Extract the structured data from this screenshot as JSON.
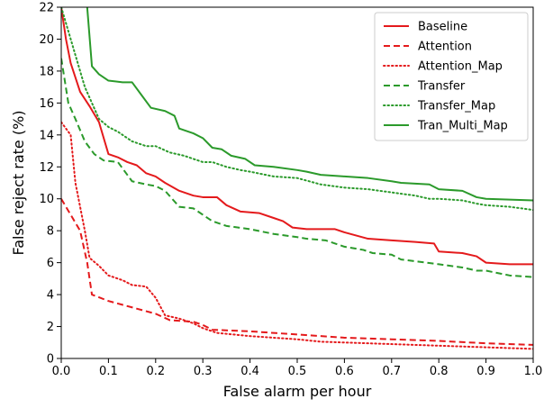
{
  "chart_data": {
    "type": "line",
    "xlabel": "False alarm per hour",
    "ylabel": "False reject rate (%)",
    "xlim": [
      0.0,
      1.0
    ],
    "ylim": [
      0,
      22
    ],
    "x_ticks": [
      "0.0",
      "0.1",
      "0.2",
      "0.3",
      "0.4",
      "0.5",
      "0.6",
      "0.7",
      "0.8",
      "0.9",
      "1.0"
    ],
    "y_ticks": [
      "0",
      "2",
      "4",
      "6",
      "8",
      "10",
      "12",
      "14",
      "16",
      "18",
      "20",
      "22"
    ],
    "grid": false,
    "legend_position": "top-right",
    "series": [
      {
        "name": "Baseline",
        "color": "#e41a1c",
        "dash": "solid",
        "points": [
          [
            0.0,
            22.0
          ],
          [
            0.01,
            20.0
          ],
          [
            0.02,
            18.5
          ],
          [
            0.04,
            16.7
          ],
          [
            0.06,
            15.8
          ],
          [
            0.08,
            14.8
          ],
          [
            0.1,
            12.8
          ],
          [
            0.12,
            12.6
          ],
          [
            0.14,
            12.3
          ],
          [
            0.16,
            12.1
          ],
          [
            0.18,
            11.6
          ],
          [
            0.2,
            11.4
          ],
          [
            0.22,
            11.0
          ],
          [
            0.25,
            10.5
          ],
          [
            0.28,
            10.2
          ],
          [
            0.3,
            10.1
          ],
          [
            0.33,
            10.1
          ],
          [
            0.35,
            9.6
          ],
          [
            0.38,
            9.2
          ],
          [
            0.42,
            9.1
          ],
          [
            0.45,
            8.8
          ],
          [
            0.47,
            8.6
          ],
          [
            0.49,
            8.2
          ],
          [
            0.52,
            8.1
          ],
          [
            0.58,
            8.1
          ],
          [
            0.6,
            7.9
          ],
          [
            0.65,
            7.5
          ],
          [
            0.7,
            7.4
          ],
          [
            0.75,
            7.3
          ],
          [
            0.79,
            7.2
          ],
          [
            0.8,
            6.7
          ],
          [
            0.85,
            6.6
          ],
          [
            0.88,
            6.4
          ],
          [
            0.9,
            6.0
          ],
          [
            0.95,
            5.9
          ],
          [
            1.0,
            5.9
          ]
        ]
      },
      {
        "name": "Attention",
        "color": "#e41a1c",
        "dash": "dashed",
        "points": [
          [
            0.0,
            10.0
          ],
          [
            0.02,
            9.0
          ],
          [
            0.04,
            8.0
          ],
          [
            0.055,
            6.0
          ],
          [
            0.065,
            4.0
          ],
          [
            0.1,
            3.6
          ],
          [
            0.15,
            3.2
          ],
          [
            0.2,
            2.8
          ],
          [
            0.23,
            2.4
          ],
          [
            0.28,
            2.3
          ],
          [
            0.3,
            2.1
          ],
          [
            0.32,
            1.8
          ],
          [
            0.4,
            1.7
          ],
          [
            0.5,
            1.5
          ],
          [
            0.55,
            1.4
          ],
          [
            0.6,
            1.3
          ],
          [
            0.7,
            1.2
          ],
          [
            0.8,
            1.1
          ],
          [
            0.9,
            0.95
          ],
          [
            1.0,
            0.85
          ]
        ]
      },
      {
        "name": "Attention_Map",
        "color": "#e41a1c",
        "dash": "dotted",
        "points": [
          [
            0.0,
            14.8
          ],
          [
            0.02,
            14.0
          ],
          [
            0.03,
            11.0
          ],
          [
            0.05,
            8.0
          ],
          [
            0.06,
            6.3
          ],
          [
            0.08,
            5.8
          ],
          [
            0.1,
            5.2
          ],
          [
            0.13,
            4.9
          ],
          [
            0.15,
            4.6
          ],
          [
            0.18,
            4.5
          ],
          [
            0.2,
            3.8
          ],
          [
            0.22,
            2.7
          ],
          [
            0.25,
            2.5
          ],
          [
            0.28,
            2.2
          ],
          [
            0.3,
            1.9
          ],
          [
            0.33,
            1.6
          ],
          [
            0.4,
            1.4
          ],
          [
            0.5,
            1.2
          ],
          [
            0.55,
            1.05
          ],
          [
            0.6,
            1.0
          ],
          [
            0.7,
            0.9
          ],
          [
            0.8,
            0.8
          ],
          [
            0.9,
            0.7
          ],
          [
            1.0,
            0.6
          ]
        ]
      },
      {
        "name": "Transfer",
        "color": "#2b9a2b",
        "dash": "dashed",
        "points": [
          [
            0.0,
            18.8
          ],
          [
            0.015,
            16.0
          ],
          [
            0.03,
            15.0
          ],
          [
            0.05,
            13.6
          ],
          [
            0.07,
            12.8
          ],
          [
            0.09,
            12.4
          ],
          [
            0.12,
            12.3
          ],
          [
            0.15,
            11.1
          ],
          [
            0.18,
            10.9
          ],
          [
            0.2,
            10.8
          ],
          [
            0.22,
            10.5
          ],
          [
            0.25,
            9.5
          ],
          [
            0.28,
            9.4
          ],
          [
            0.3,
            9.0
          ],
          [
            0.32,
            8.6
          ],
          [
            0.35,
            8.3
          ],
          [
            0.4,
            8.1
          ],
          [
            0.45,
            7.8
          ],
          [
            0.5,
            7.6
          ],
          [
            0.52,
            7.5
          ],
          [
            0.56,
            7.4
          ],
          [
            0.6,
            7.0
          ],
          [
            0.64,
            6.8
          ],
          [
            0.66,
            6.6
          ],
          [
            0.7,
            6.5
          ],
          [
            0.72,
            6.2
          ],
          [
            0.8,
            5.9
          ],
          [
            0.85,
            5.7
          ],
          [
            0.88,
            5.5
          ],
          [
            0.9,
            5.5
          ],
          [
            0.95,
            5.2
          ],
          [
            1.0,
            5.1
          ]
        ]
      },
      {
        "name": "Transfer_Map",
        "color": "#2b9a2b",
        "dash": "dotted",
        "points": [
          [
            0.0,
            22.0
          ],
          [
            0.02,
            20.0
          ],
          [
            0.05,
            17.0
          ],
          [
            0.08,
            15.0
          ],
          [
            0.1,
            14.5
          ],
          [
            0.12,
            14.2
          ],
          [
            0.15,
            13.6
          ],
          [
            0.18,
            13.3
          ],
          [
            0.2,
            13.3
          ],
          [
            0.23,
            12.9
          ],
          [
            0.26,
            12.7
          ],
          [
            0.3,
            12.3
          ],
          [
            0.32,
            12.3
          ],
          [
            0.35,
            12.0
          ],
          [
            0.38,
            11.8
          ],
          [
            0.4,
            11.7
          ],
          [
            0.45,
            11.4
          ],
          [
            0.5,
            11.3
          ],
          [
            0.55,
            10.9
          ],
          [
            0.6,
            10.7
          ],
          [
            0.65,
            10.6
          ],
          [
            0.7,
            10.4
          ],
          [
            0.75,
            10.2
          ],
          [
            0.78,
            10.0
          ],
          [
            0.8,
            10.0
          ],
          [
            0.85,
            9.9
          ],
          [
            0.88,
            9.7
          ],
          [
            0.9,
            9.6
          ],
          [
            0.95,
            9.5
          ],
          [
            1.0,
            9.3
          ]
        ]
      },
      {
        "name": "Tran_Multi_Map",
        "color": "#2b9a2b",
        "dash": "solid",
        "points": [
          [
            0.055,
            22.0
          ],
          [
            0.065,
            18.3
          ],
          [
            0.08,
            17.8
          ],
          [
            0.1,
            17.4
          ],
          [
            0.13,
            17.3
          ],
          [
            0.15,
            17.3
          ],
          [
            0.17,
            16.5
          ],
          [
            0.19,
            15.7
          ],
          [
            0.22,
            15.5
          ],
          [
            0.24,
            15.2
          ],
          [
            0.25,
            14.4
          ],
          [
            0.28,
            14.1
          ],
          [
            0.3,
            13.8
          ],
          [
            0.32,
            13.2
          ],
          [
            0.34,
            13.1
          ],
          [
            0.36,
            12.7
          ],
          [
            0.39,
            12.5
          ],
          [
            0.41,
            12.1
          ],
          [
            0.45,
            12.0
          ],
          [
            0.5,
            11.8
          ],
          [
            0.52,
            11.7
          ],
          [
            0.55,
            11.5
          ],
          [
            0.6,
            11.4
          ],
          [
            0.65,
            11.3
          ],
          [
            0.7,
            11.1
          ],
          [
            0.72,
            11.0
          ],
          [
            0.78,
            10.9
          ],
          [
            0.8,
            10.6
          ],
          [
            0.85,
            10.5
          ],
          [
            0.88,
            10.1
          ],
          [
            0.9,
            10.0
          ],
          [
            1.0,
            9.9
          ]
        ]
      }
    ]
  }
}
